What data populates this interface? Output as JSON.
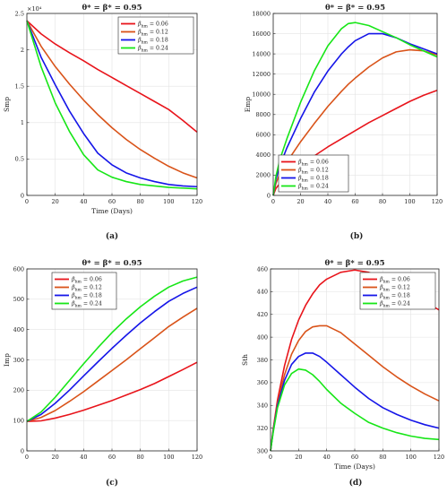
{
  "legend_symbol": "β",
  "legend_sub": "hm",
  "legend_eq": " = ",
  "colors": {
    "s1": "#e8141b",
    "s2": "#d95319",
    "s3": "#1515e8",
    "s4": "#17e617"
  },
  "chart_data": [
    {
      "type": "line",
      "title": "θ* = β* = 0.95",
      "xlabel": "Time (Days)",
      "ylabel": "Smp",
      "exponent_label": "×10⁴",
      "xlim": [
        0,
        120
      ],
      "ylim": [
        0,
        2.5
      ],
      "xticks": [
        0,
        20,
        40,
        60,
        80,
        100,
        120
      ],
      "yticks": [
        0,
        0.5,
        1,
        1.5,
        2,
        2.5
      ],
      "ytick_labels": [
        "0",
        "0.5",
        "1",
        "1.5",
        "2",
        "2.5"
      ],
      "grid": true,
      "legend_position": "top-right",
      "caption": "(a)",
      "x": [
        0,
        10,
        20,
        30,
        40,
        50,
        60,
        70,
        80,
        90,
        100,
        110,
        120
      ],
      "series": [
        {
          "name": "0.06",
          "color": "#e8141b",
          "values": [
            2.4,
            2.22,
            2.08,
            1.96,
            1.85,
            1.73,
            1.62,
            1.51,
            1.4,
            1.29,
            1.18,
            1.03,
            0.87
          ]
        },
        {
          "name": "0.12",
          "color": "#d95319",
          "values": [
            2.4,
            2.05,
            1.77,
            1.53,
            1.31,
            1.11,
            0.93,
            0.77,
            0.63,
            0.51,
            0.4,
            0.31,
            0.24
          ]
        },
        {
          "name": "0.18",
          "color": "#1515e8",
          "values": [
            2.4,
            1.9,
            1.52,
            1.16,
            0.85,
            0.58,
            0.42,
            0.31,
            0.24,
            0.19,
            0.15,
            0.13,
            0.12
          ]
        },
        {
          "name": "0.24",
          "color": "#17e617",
          "values": [
            2.4,
            1.77,
            1.27,
            0.88,
            0.56,
            0.35,
            0.25,
            0.19,
            0.15,
            0.13,
            0.11,
            0.1,
            0.09
          ]
        }
      ]
    },
    {
      "type": "line",
      "title": "θ* = β* = 0.95",
      "xlabel": "",
      "ylabel": "Emp",
      "exponent_label": "",
      "xlim": [
        0,
        120
      ],
      "ylim": [
        0,
        18000
      ],
      "xticks": [
        0,
        20,
        40,
        60,
        80,
        100,
        120
      ],
      "yticks": [
        0,
        2000,
        4000,
        6000,
        8000,
        10000,
        12000,
        14000,
        16000,
        18000
      ],
      "ytick_labels": [
        "0",
        "2000",
        "4000",
        "6000",
        "8000",
        "10000",
        "12000",
        "14000",
        "16000",
        "18000"
      ],
      "grid": true,
      "legend_position": "bottom-right",
      "caption": "(b)",
      "x": [
        0,
        2,
        5,
        10,
        20,
        30,
        40,
        50,
        55,
        60,
        70,
        80,
        90,
        100,
        110,
        120
      ],
      "series": [
        {
          "name": "0.06",
          "color": "#e8141b",
          "values": [
            0,
            700,
            1200,
            1800,
            2900,
            3900,
            4800,
            5600,
            6000,
            6400,
            7200,
            7900,
            8600,
            9300,
            9900,
            10400
          ]
        },
        {
          "name": "0.12",
          "color": "#d95319",
          "values": [
            0,
            1200,
            2200,
            3300,
            5300,
            7100,
            8800,
            10300,
            11000,
            11600,
            12700,
            13600,
            14200,
            14400,
            14300,
            13900
          ]
        },
        {
          "name": "0.18",
          "color": "#1515e8",
          "values": [
            0,
            1600,
            3000,
            4700,
            7600,
            10200,
            12300,
            14000,
            14700,
            15300,
            16000,
            16000,
            15600,
            15000,
            14500,
            14000
          ]
        },
        {
          "name": "0.24",
          "color": "#17e617",
          "values": [
            0,
            1900,
            3600,
            5600,
            9200,
            12300,
            14800,
            16500,
            17000,
            17100,
            16800,
            16200,
            15600,
            14900,
            14300,
            13700
          ]
        }
      ]
    },
    {
      "type": "line",
      "title": "θ* = β* = 0.95",
      "xlabel": "",
      "ylabel": "Imp",
      "exponent_label": "",
      "xlim": [
        0,
        120
      ],
      "ylim": [
        0,
        600
      ],
      "xticks": [
        0,
        20,
        40,
        60,
        80,
        100,
        120
      ],
      "yticks": [
        0,
        100,
        200,
        300,
        400,
        500,
        600
      ],
      "ytick_labels": [
        "0",
        "100",
        "200",
        "300",
        "400",
        "500",
        "600"
      ],
      "grid": true,
      "legend_position": "top-left",
      "caption": "(c)",
      "x": [
        0,
        10,
        20,
        30,
        40,
        50,
        60,
        70,
        80,
        90,
        100,
        110,
        120
      ],
      "series": [
        {
          "name": "0.06",
          "color": "#e8141b",
          "values": [
            97,
            99,
            108,
            120,
            134,
            150,
            166,
            184,
            202,
            222,
            245,
            268,
            292
          ]
        },
        {
          "name": "0.12",
          "color": "#d95319",
          "values": [
            97,
            110,
            133,
            163,
            195,
            230,
            265,
            300,
            337,
            373,
            410,
            441,
            470
          ]
        },
        {
          "name": "0.18",
          "color": "#1515e8",
          "values": [
            97,
            120,
            157,
            200,
            247,
            293,
            338,
            381,
            422,
            459,
            493,
            519,
            540
          ]
        },
        {
          "name": "0.24",
          "color": "#17e617",
          "values": [
            97,
            128,
            177,
            232,
            287,
            340,
            390,
            435,
            475,
            510,
            540,
            560,
            573
          ]
        }
      ]
    },
    {
      "type": "line",
      "title": "θ* = β* = 0.95",
      "xlabel": "Time (Days)",
      "ylabel": "Sth",
      "exponent_label": "",
      "xlim": [
        0,
        120
      ],
      "ylim": [
        300,
        460
      ],
      "xticks": [
        0,
        20,
        40,
        60,
        80,
        100,
        120
      ],
      "yticks": [
        300,
        320,
        340,
        360,
        380,
        400,
        420,
        440,
        460
      ],
      "ytick_labels": [
        "300",
        "320",
        "340",
        "360",
        "380",
        "400",
        "420",
        "440",
        "460"
      ],
      "grid": true,
      "legend_position": "top-right",
      "caption": "(d)",
      "x": [
        0,
        2,
        5,
        10,
        15,
        20,
        25,
        30,
        35,
        40,
        50,
        60,
        70,
        80,
        90,
        100,
        110,
        120
      ],
      "series": [
        {
          "name": "0.06",
          "color": "#e8141b",
          "values": [
            300,
            320,
            345,
            375,
            398,
            415,
            428,
            438,
            446,
            451,
            457,
            459,
            457,
            452,
            445,
            438,
            431,
            424
          ]
        },
        {
          "name": "0.12",
          "color": "#d95319",
          "values": [
            300,
            319,
            342,
            367,
            385,
            397,
            405,
            409,
            410,
            410,
            404,
            394,
            384,
            374,
            365,
            357,
            350,
            344
          ]
        },
        {
          "name": "0.18",
          "color": "#1515e8",
          "values": [
            300,
            318,
            340,
            362,
            376,
            383,
            386,
            386,
            383,
            378,
            367,
            356,
            346,
            338,
            332,
            327,
            323,
            320
          ]
        },
        {
          "name": "0.24",
          "color": "#17e617",
          "values": [
            300,
            317,
            338,
            358,
            368,
            372,
            371,
            367,
            361,
            354,
            342,
            333,
            325,
            320,
            316,
            313,
            311,
            310
          ]
        }
      ]
    }
  ]
}
